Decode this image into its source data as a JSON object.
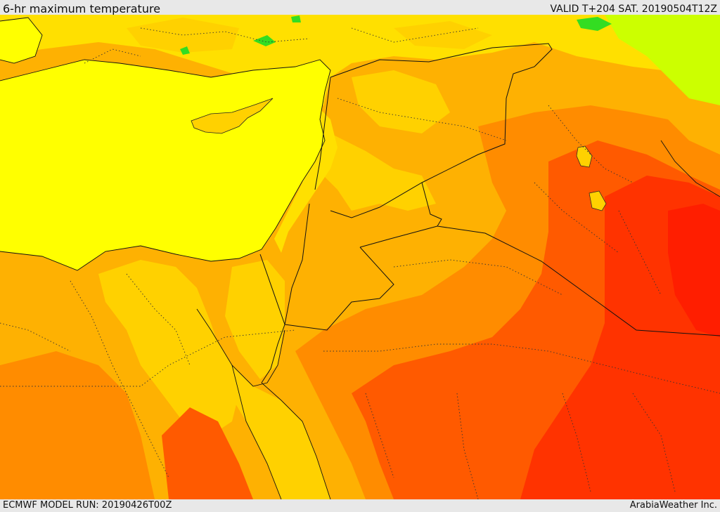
{
  "header": {
    "title": "6-hr maximum temperature",
    "valid": "VALID T+204 SAT. 20190504T12Z"
  },
  "footer": {
    "model_run": "ECMWF MODEL RUN: 20190426T00Z",
    "credit": "ArabiaWeather Inc."
  },
  "map": {
    "field": "6-hr maximum temperature",
    "palette": {
      "sea": "#ffff00",
      "pale_green": "#ccff00",
      "green": "#33dd22",
      "light_yellow": "#ffe000",
      "yellow_orange": "#ffd100",
      "orange": "#feb102",
      "dark_orange": "#ff8c00",
      "red_orange": "#ff5a00",
      "red": "#ff3300",
      "deep_red": "#ff1e00"
    },
    "borders": [
      "coastline",
      "country-borders",
      "province-borders"
    ]
  }
}
